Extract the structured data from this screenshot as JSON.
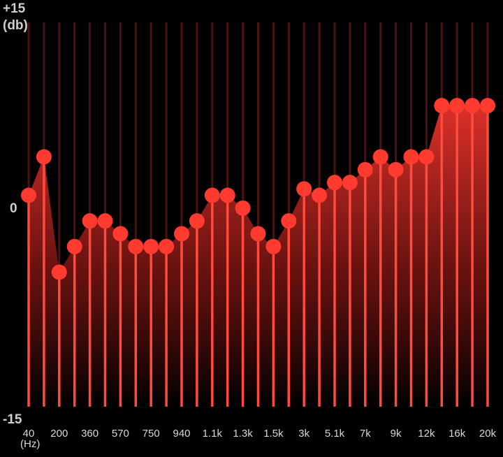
{
  "y_axis": {
    "top_label": "+15",
    "unit_label": "(db)",
    "zero_label": "0",
    "bottom_label": "-15"
  },
  "x_axis": {
    "unit_label": "(Hz)"
  },
  "chart_data": {
    "type": "line",
    "ylim": [
      -15,
      15
    ],
    "x_tick_labels": [
      "40",
      "200",
      "360",
      "570",
      "750",
      "940",
      "1.1k",
      "1.3k",
      "1.5k",
      "3k",
      "5.1k",
      "7k",
      "9k",
      "12k",
      "16k",
      "20k"
    ],
    "band_count": 31,
    "values": [
      1.5,
      4.5,
      -4.5,
      -2.5,
      -0.5,
      -0.5,
      -1.5,
      -2.5,
      -2.5,
      -2.5,
      -1.5,
      -0.5,
      1.5,
      1.5,
      0.5,
      -1.5,
      -2.5,
      -0.5,
      2,
      1.5,
      2.5,
      2.5,
      3.5,
      4.5,
      3.5,
      4.5,
      4.5,
      8.5,
      8.5,
      8.5,
      8.5
    ]
  },
  "colors": {
    "background": "#000000",
    "slider": "#ff3b30",
    "track_dim": "#4a1210",
    "fill_top": "#ff3b30",
    "fill_bottom": "#000000"
  }
}
